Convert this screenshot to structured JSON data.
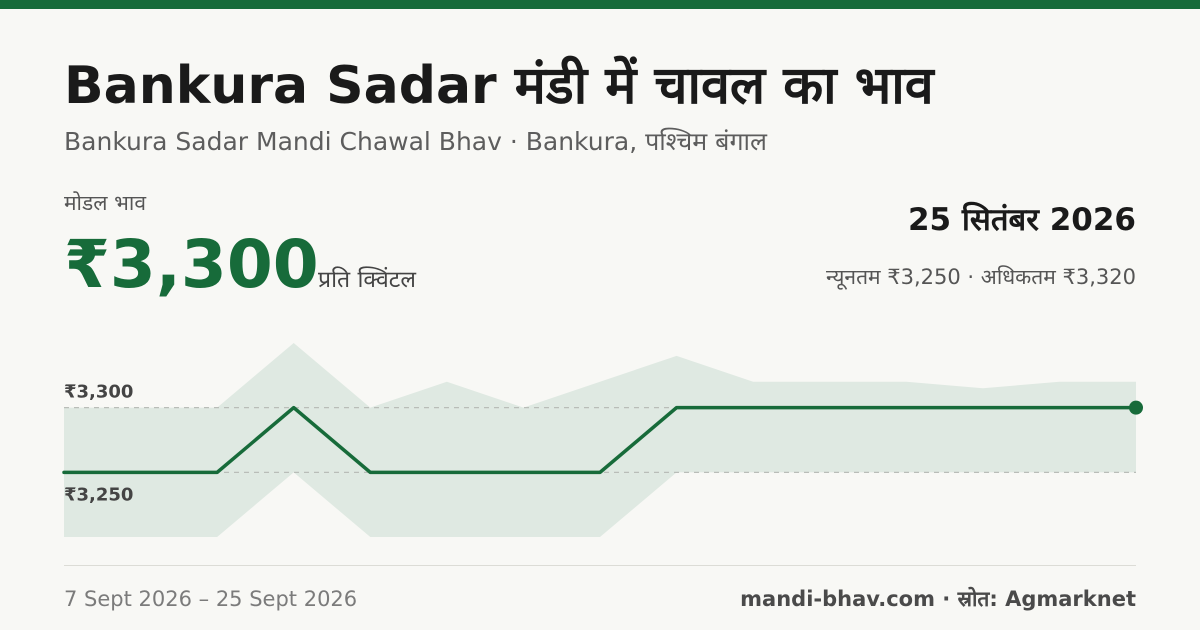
{
  "title": "Bankura Sadar मंडी में चावल का भाव",
  "subtitle": "Bankura Sadar Mandi Chawal Bhav · Bankura, पश्चिम बंगाल",
  "price": {
    "label": "मोडल भाव",
    "value": "₹3,300",
    "unit": "प्रति क्विंटल"
  },
  "date": "25 सितंबर 2026",
  "min_max": "न्यूनतम ₹3,250 · अधिकतम ₹3,320",
  "footer": {
    "period": "7 Sept 2026 – 25 Sept 2026",
    "source": "mandi-bhav.com · स्रोत: Agmarknet"
  },
  "colors": {
    "accent": "#176b3a",
    "band": "#dfe9e2",
    "background": "#f8f8f5"
  },
  "chart_data": {
    "type": "line",
    "x": [
      "7 Sept 2026",
      "",
      "",
      "",
      "",
      "",
      "",
      "",
      "",
      "",
      "",
      "",
      "",
      "",
      "25 Sept 2026"
    ],
    "series": [
      {
        "values": [
          3250,
          3250,
          3250,
          3300,
          3250,
          3250,
          3250,
          3250,
          3300,
          3300,
          3300,
          3300,
          3300,
          3300,
          3300
        ]
      }
    ],
    "band": {
      "min": [
        3200,
        3200,
        3200,
        3250,
        3200,
        3200,
        3200,
        3200,
        3250,
        3250,
        3250,
        3250,
        3250,
        3250,
        3250
      ],
      "max": [
        3300,
        3300,
        3300,
        3350,
        3300,
        3320,
        3300,
        3320,
        3340,
        3320,
        3320,
        3320,
        3315,
        3320,
        3320
      ]
    },
    "reference_lines": [
      {
        "label": "₹3,300",
        "value": 3300
      },
      {
        "label": "₹3,250",
        "value": 3250
      }
    ],
    "ylim": [
      3190,
      3360
    ]
  }
}
